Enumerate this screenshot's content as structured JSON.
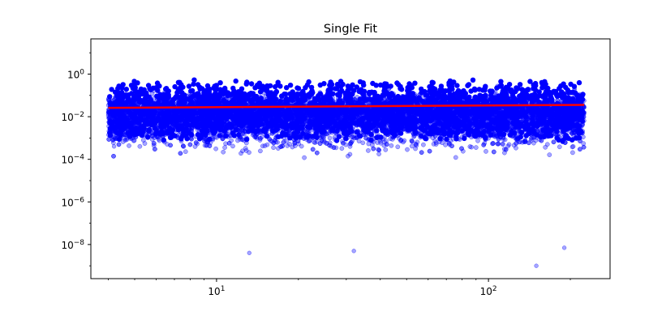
{
  "chart_data": {
    "type": "scatter",
    "title": "Single Fit",
    "xlabel": "",
    "ylabel": "",
    "x_scale": "log",
    "y_scale": "log",
    "xlim": [
      3.45,
      280
    ],
    "ylim": [
      2.5e-10,
      45
    ],
    "x_ticks": [
      {
        "value": 10,
        "base": "10",
        "exp": "1"
      },
      {
        "value": 100,
        "base": "10",
        "exp": "2"
      }
    ],
    "y_ticks": [
      {
        "value": 1,
        "base": "10",
        "exp": "0"
      },
      {
        "value": 0.01,
        "base": "10",
        "exp": "−2"
      },
      {
        "value": 0.0001,
        "base": "10",
        "exp": "−4"
      },
      {
        "value": 1e-06,
        "base": "10",
        "exp": "−6"
      },
      {
        "value": 1e-08,
        "base": "10",
        "exp": "−8"
      }
    ],
    "series": [
      {
        "kind": "scatter",
        "color": "#0000ff",
        "alpha": 0.35,
        "x_range": [
          4.0,
          225
        ],
        "y_typical_range": [
          1e-06,
          3
        ],
        "y_extreme_range": [
          1e-09,
          10
        ],
        "outliers": [
          {
            "x": 13.2,
            "y": 4e-09
          },
          {
            "x": 32,
            "y": 5e-09
          },
          {
            "x": 150,
            "y": 1e-09
          },
          {
            "x": 190,
            "y": 7e-09
          },
          {
            "x": 4.2,
            "y": 0.0004
          }
        ]
      },
      {
        "kind": "line",
        "color": "#ff0000",
        "x": [
          4.0,
          225
        ],
        "y": [
          0.026,
          0.036
        ]
      }
    ],
    "grid": false,
    "legend": "none"
  }
}
